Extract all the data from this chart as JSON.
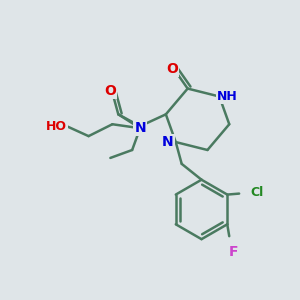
{
  "bg_color": "#dfe5e8",
  "bond_color": "#4a7a60",
  "bond_width": 1.8,
  "atom_colors": {
    "O": "#dd0000",
    "N": "#0000dd",
    "H": "#558888",
    "Cl": "#228822",
    "F": "#cc44cc",
    "C": "#333333"
  },
  "figsize": [
    3.0,
    3.0
  ],
  "dpi": 100
}
